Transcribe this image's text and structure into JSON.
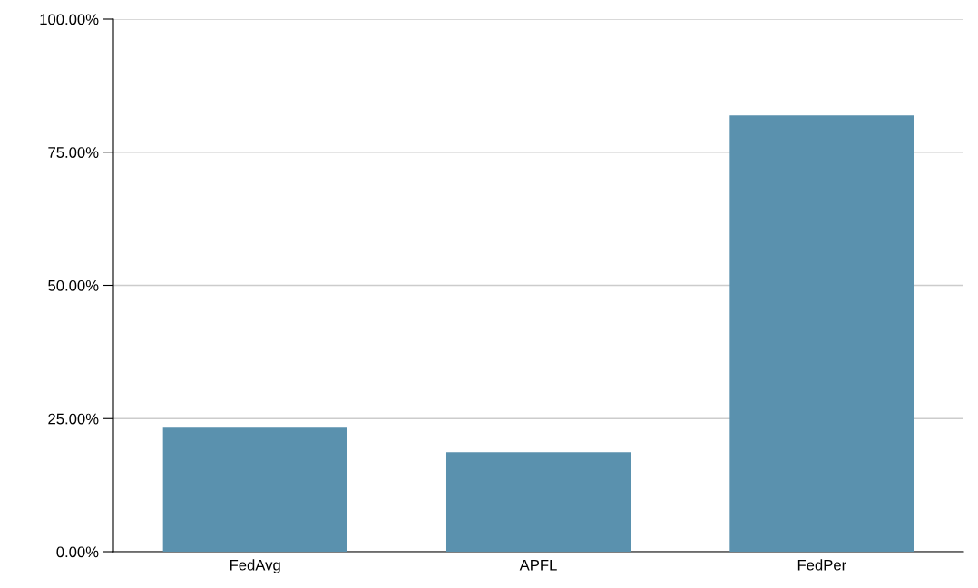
{
  "chart_data": {
    "type": "bar",
    "categories": [
      "FedAvg",
      "APFL",
      "FedPer"
    ],
    "values": [
      23.3,
      18.7,
      81.9
    ],
    "color": "#5a91ae",
    "ylim": [
      0,
      100
    ],
    "yticks": [
      {
        "value": 0,
        "label": "0.00%"
      },
      {
        "value": 25,
        "label": "25.00%"
      },
      {
        "value": 50,
        "label": "50.00%"
      },
      {
        "value": 75,
        "label": "75.00%"
      },
      {
        "value": 100,
        "label": "100.00%"
      }
    ],
    "grid": "y"
  }
}
